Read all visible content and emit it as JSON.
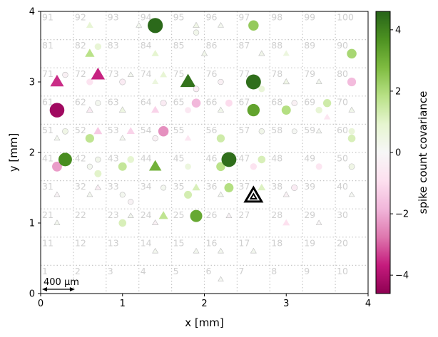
{
  "chart_data": {
    "type": "scatter",
    "xlabel": "x [mm]",
    "ylabel": "y [mm]",
    "xlim": [
      0,
      4
    ],
    "ylim": [
      0,
      4
    ],
    "x_ticks": [
      "0",
      "1",
      "2",
      "3",
      "4"
    ],
    "y_ticks": [
      "0",
      "1",
      "2",
      "3",
      "4"
    ],
    "grid": "dotted",
    "colorbar": {
      "label": "spike count covariance",
      "range": [
        -4.6,
        4.6
      ],
      "ticks": [
        "−4",
        "−2",
        "0",
        "2",
        "4"
      ],
      "tick_values": [
        -4,
        -2,
        0,
        2,
        4
      ],
      "colormap": "PiYG",
      "colormap_stops": [
        "#8e0152",
        "#c51b7d",
        "#de77ae",
        "#f1b6da",
        "#fde0ef",
        "#f7f7f7",
        "#e6f5d0",
        "#b8e186",
        "#7fbc41",
        "#4d9221",
        "#276419"
      ]
    },
    "scalebar": {
      "label": "400 μm",
      "length_mm": 0.4
    },
    "electrodes": [
      "1",
      "2",
      "3",
      "4",
      "5",
      "6",
      "7",
      "8",
      "9",
      "10",
      "11",
      "12",
      "13",
      "14",
      "15",
      "16",
      "17",
      "18",
      "19",
      "20",
      "21",
      "22",
      "23",
      "24",
      "25",
      "26",
      "27",
      "28",
      "29",
      "30",
      "31",
      "32",
      "33",
      "34",
      "35",
      "36",
      "37",
      "38",
      "39",
      "40",
      "41",
      "42",
      "43",
      "44",
      "45",
      "46",
      "47",
      "48",
      "49",
      "50",
      "51",
      "52",
      "53",
      "54",
      "55",
      "56",
      "57",
      "58",
      "59",
      "60",
      "61",
      "62",
      "63",
      "64",
      "65",
      "66",
      "67",
      "68",
      "69",
      "70",
      "71",
      "72",
      "73",
      "74",
      "75",
      "76",
      "77",
      "78",
      "79",
      "80",
      "81",
      "82",
      "83",
      "84",
      "85",
      "86",
      "87",
      "88",
      "89",
      "90",
      "91",
      "92",
      "93",
      "94",
      "95",
      "96",
      "97",
      "98",
      "99",
      "100"
    ],
    "reference": {
      "x": 2.6,
      "y": 1.38,
      "marker": "triangle"
    },
    "points": [
      {
        "x": 1.4,
        "y": 3.8,
        "m": "o",
        "v": 4.5
      },
      {
        "x": 0.6,
        "y": 3.8,
        "m": "^",
        "v": 0.8
      },
      {
        "x": 1.2,
        "y": 3.8,
        "m": "^",
        "v": 0.2
      },
      {
        "x": 1.9,
        "y": 3.8,
        "m": "^",
        "v": 0.4
      },
      {
        "x": 1.9,
        "y": 3.7,
        "m": "o",
        "v": 0.3
      },
      {
        "x": 2.2,
        "y": 3.8,
        "m": "^",
        "v": 0.2
      },
      {
        "x": 2.6,
        "y": 3.8,
        "m": "o",
        "v": 2.4
      },
      {
        "x": 0.7,
        "y": 3.5,
        "m": "o",
        "v": 0.8
      },
      {
        "x": 0.6,
        "y": 3.4,
        "m": "^",
        "v": 1.8
      },
      {
        "x": 1.4,
        "y": 3.4,
        "m": "^",
        "v": 0.9
      },
      {
        "x": 2.0,
        "y": 3.4,
        "m": "^",
        "v": 0.3
      },
      {
        "x": 2.7,
        "y": 3.4,
        "m": "^",
        "v": 0.3
      },
      {
        "x": 3.0,
        "y": 3.4,
        "m": "^",
        "v": 0.6
      },
      {
        "x": 3.8,
        "y": 3.4,
        "m": "o",
        "v": 2.1
      },
      {
        "x": 0.2,
        "y": 3.0,
        "m": "^",
        "v": -3.5
      },
      {
        "x": 0.3,
        "y": 3.1,
        "m": "o",
        "v": -0.3
      },
      {
        "x": 0.6,
        "y": 3.0,
        "m": "o",
        "v": -0.8
      },
      {
        "x": 0.7,
        "y": 3.1,
        "m": "^",
        "v": -3.6
      },
      {
        "x": 1.0,
        "y": 3.0,
        "m": "o",
        "v": -0.5
      },
      {
        "x": 1.1,
        "y": 3.1,
        "m": "^",
        "v": 0.2
      },
      {
        "x": 1.4,
        "y": 3.0,
        "m": "^",
        "v": 0.6
      },
      {
        "x": 1.5,
        "y": 3.1,
        "m": "^",
        "v": 0.8
      },
      {
        "x": 1.8,
        "y": 3.0,
        "m": "^",
        "v": 4.3
      },
      {
        "x": 1.9,
        "y": 2.9,
        "m": "o",
        "v": -0.4
      },
      {
        "x": 2.2,
        "y": 3.0,
        "m": "o",
        "v": -0.3
      },
      {
        "x": 2.6,
        "y": 3.0,
        "m": "o",
        "v": 4.4
      },
      {
        "x": 2.7,
        "y": 2.9,
        "m": "o",
        "v": 0.7
      },
      {
        "x": 3.0,
        "y": 3.0,
        "m": "^",
        "v": 0.4
      },
      {
        "x": 3.4,
        "y": 3.0,
        "m": "^",
        "v": 0.2
      },
      {
        "x": 3.8,
        "y": 3.0,
        "m": "o",
        "v": -1.7
      },
      {
        "x": 0.2,
        "y": 2.6,
        "m": "o",
        "v": -4.3
      },
      {
        "x": 0.6,
        "y": 2.6,
        "m": "^",
        "v": -0.5
      },
      {
        "x": 0.7,
        "y": 2.7,
        "m": "o",
        "v": 0.2
      },
      {
        "x": 1.0,
        "y": 2.6,
        "m": "^",
        "v": 0.5
      },
      {
        "x": 1.4,
        "y": 2.6,
        "m": "^",
        "v": -1.2
      },
      {
        "x": 1.5,
        "y": 2.7,
        "m": "o",
        "v": -0.5
      },
      {
        "x": 1.9,
        "y": 2.7,
        "m": "o",
        "v": -1.8
      },
      {
        "x": 1.8,
        "y": 2.6,
        "m": "o",
        "v": -0.6
      },
      {
        "x": 2.3,
        "y": 2.7,
        "m": "o",
        "v": -1.0
      },
      {
        "x": 2.2,
        "y": 2.6,
        "m": "^",
        "v": 0.3
      },
      {
        "x": 2.6,
        "y": 2.6,
        "m": "o",
        "v": 3.3
      },
      {
        "x": 3.0,
        "y": 2.6,
        "m": "o",
        "v": 1.9
      },
      {
        "x": 3.1,
        "y": 2.7,
        "m": "o",
        "v": -0.3
      },
      {
        "x": 3.4,
        "y": 2.6,
        "m": "o",
        "v": 0.8
      },
      {
        "x": 3.5,
        "y": 2.7,
        "m": "o",
        "v": 1.4
      },
      {
        "x": 3.5,
        "y": 2.5,
        "m": "^",
        "v": -0.7
      },
      {
        "x": 3.8,
        "y": 2.6,
        "m": "^",
        "v": 0.3
      },
      {
        "x": 0.2,
        "y": 2.2,
        "m": "^",
        "v": 0.2
      },
      {
        "x": 0.3,
        "y": 2.3,
        "m": "o",
        "v": 0.4
      },
      {
        "x": 0.6,
        "y": 2.2,
        "m": "o",
        "v": 1.7
      },
      {
        "x": 0.7,
        "y": 2.3,
        "m": "^",
        "v": -1.4
      },
      {
        "x": 1.0,
        "y": 2.2,
        "m": "^",
        "v": 0.2
      },
      {
        "x": 1.1,
        "y": 2.3,
        "m": "^",
        "v": -1.2
      },
      {
        "x": 1.4,
        "y": 2.2,
        "m": "o",
        "v": -0.3
      },
      {
        "x": 1.5,
        "y": 2.3,
        "m": "o",
        "v": -2.4
      },
      {
        "x": 1.8,
        "y": 2.2,
        "m": "^",
        "v": -0.7
      },
      {
        "x": 2.2,
        "y": 2.2,
        "m": "o",
        "v": 1.4
      },
      {
        "x": 2.7,
        "y": 2.3,
        "m": "o",
        "v": 0.3
      },
      {
        "x": 3.1,
        "y": 2.3,
        "m": "o",
        "v": 0.1
      },
      {
        "x": 3.4,
        "y": 2.3,
        "m": "^",
        "v": 0.1
      },
      {
        "x": 3.8,
        "y": 2.3,
        "m": "o",
        "v": 0.7
      },
      {
        "x": 3.8,
        "y": 2.2,
        "m": "o",
        "v": 1.2
      },
      {
        "x": 0.2,
        "y": 1.8,
        "m": "o",
        "v": -2.2
      },
      {
        "x": 0.3,
        "y": 1.9,
        "m": "o",
        "v": 3.8
      },
      {
        "x": 0.6,
        "y": 1.8,
        "m": "o",
        "v": 0.2
      },
      {
        "x": 0.7,
        "y": 1.7,
        "m": "o",
        "v": 1.0
      },
      {
        "x": 0.7,
        "y": 1.9,
        "m": "o",
        "v": 0.3
      },
      {
        "x": 1.0,
        "y": 1.8,
        "m": "o",
        "v": 1.6
      },
      {
        "x": 1.1,
        "y": 1.9,
        "m": "o",
        "v": 0.9
      },
      {
        "x": 1.4,
        "y": 1.8,
        "m": "^",
        "v": 3.0
      },
      {
        "x": 1.8,
        "y": 1.8,
        "m": "o",
        "v": 0.6
      },
      {
        "x": 2.2,
        "y": 1.8,
        "m": "o",
        "v": 1.8
      },
      {
        "x": 2.3,
        "y": 1.9,
        "m": "o",
        "v": 4.4
      },
      {
        "x": 2.6,
        "y": 1.8,
        "m": "o",
        "v": -0.8
      },
      {
        "x": 2.7,
        "y": 1.9,
        "m": "o",
        "v": 1.2
      },
      {
        "x": 3.4,
        "y": 1.8,
        "m": "o",
        "v": -0.7
      },
      {
        "x": 3.8,
        "y": 1.8,
        "m": "o",
        "v": 0.4
      },
      {
        "x": 0.2,
        "y": 1.4,
        "m": "^",
        "v": -0.2
      },
      {
        "x": 0.6,
        "y": 1.4,
        "m": "^",
        "v": 0.2
      },
      {
        "x": 0.7,
        "y": 1.5,
        "m": "^",
        "v": -0.4
      },
      {
        "x": 1.0,
        "y": 1.4,
        "m": "o",
        "v": 0.2
      },
      {
        "x": 1.1,
        "y": 1.3,
        "m": "o",
        "v": -0.2
      },
      {
        "x": 1.5,
        "y": 1.5,
        "m": "o",
        "v": 0.2
      },
      {
        "x": 1.8,
        "y": 1.4,
        "m": "o",
        "v": 1.3
      },
      {
        "x": 1.9,
        "y": 1.5,
        "m": "^",
        "v": 1.2
      },
      {
        "x": 2.2,
        "y": 1.4,
        "m": "^",
        "v": 0.2
      },
      {
        "x": 2.3,
        "y": 1.5,
        "m": "o",
        "v": 1.9
      },
      {
        "x": 2.7,
        "y": 1.5,
        "m": "^",
        "v": 1.1
      },
      {
        "x": 3.0,
        "y": 1.4,
        "m": "^",
        "v": -0.3
      },
      {
        "x": 3.1,
        "y": 1.5,
        "m": "o",
        "v": -0.5
      },
      {
        "x": 3.8,
        "y": 1.4,
        "m": "^",
        "v": 0.1
      },
      {
        "x": 0.2,
        "y": 1.0,
        "m": "^",
        "v": 0.2
      },
      {
        "x": 1.0,
        "y": 1.0,
        "m": "o",
        "v": 1.2
      },
      {
        "x": 1.1,
        "y": 1.1,
        "m": "^",
        "v": 0.2
      },
      {
        "x": 1.4,
        "y": 1.0,
        "m": "^",
        "v": -0.3
      },
      {
        "x": 1.5,
        "y": 1.1,
        "m": "^",
        "v": 1.7
      },
      {
        "x": 1.9,
        "y": 1.1,
        "m": "o",
        "v": 3.2
      },
      {
        "x": 2.3,
        "y": 1.1,
        "m": "^",
        "v": -0.2
      },
      {
        "x": 3.0,
        "y": 1.0,
        "m": "^",
        "v": -0.9
      },
      {
        "x": 3.4,
        "y": 1.0,
        "m": "^",
        "v": -0.1
      },
      {
        "x": 1.4,
        "y": 0.6,
        "m": "^",
        "v": 0.2
      },
      {
        "x": 1.9,
        "y": 0.6,
        "m": "^",
        "v": 0.2
      },
      {
        "x": 2.2,
        "y": 0.6,
        "m": "^",
        "v": 0.2
      },
      {
        "x": 2.6,
        "y": 0.6,
        "m": "^",
        "v": 0.2
      },
      {
        "x": 2.2,
        "y": 0.2,
        "m": "^",
        "v": 0.1
      }
    ]
  }
}
